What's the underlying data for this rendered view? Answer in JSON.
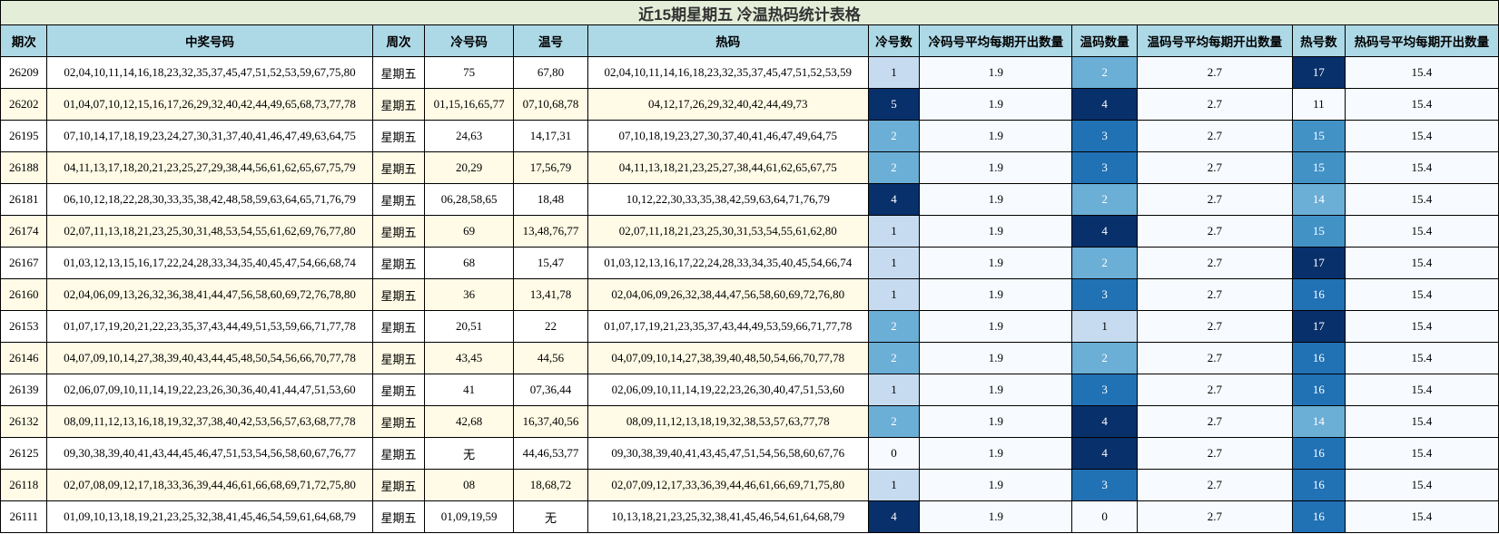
{
  "title": "近15期星期五 冷温热码统计表格",
  "headers": [
    "期次",
    "中奖号码",
    "周次",
    "冷号码",
    "温号",
    "热码",
    "冷号数",
    "冷码号平均每期开出数量",
    "温码数量",
    "温码号平均每期开出数量",
    "热号数",
    "热码号平均每期开出数量"
  ],
  "colors": {
    "c0": "#f7fbff",
    "c1": "#c6dbef",
    "c2": "#6baed6",
    "c3": "#2171b5",
    "c4": "#08306b",
    "hot11": "#f7fbff",
    "hot14": "#6baed6",
    "hot15": "#4292c6",
    "hot16": "#2171b5",
    "hot17": "#08306b",
    "light_text": "#000000",
    "dark_text": "#ffffff"
  },
  "rows": [
    {
      "period": "26209",
      "numbers": "02,04,10,11,14,16,18,23,32,35,37,45,47,51,52,53,59,67,75,80",
      "weekday": "星期五",
      "cold": "75",
      "warm": "67,80",
      "hot": "02,04,10,11,14,16,18,23,32,35,37,45,47,51,52,53,59",
      "cold_count": "1",
      "cold_avg": "1.9",
      "warm_count": "2",
      "warm_avg": "2.7",
      "hot_count": "17",
      "hot_avg": "15.4"
    },
    {
      "period": "26202",
      "numbers": "01,04,07,10,12,15,16,17,26,29,32,40,42,44,49,65,68,73,77,78",
      "weekday": "星期五",
      "cold": "01,15,16,65,77",
      "warm": "07,10,68,78",
      "hot": "04,12,17,26,29,32,40,42,44,49,73",
      "cold_count": "5",
      "cold_avg": "1.9",
      "warm_count": "4",
      "warm_avg": "2.7",
      "hot_count": "11",
      "hot_avg": "15.4"
    },
    {
      "period": "26195",
      "numbers": "07,10,14,17,18,19,23,24,27,30,31,37,40,41,46,47,49,63,64,75",
      "weekday": "星期五",
      "cold": "24,63",
      "warm": "14,17,31",
      "hot": "07,10,18,19,23,27,30,37,40,41,46,47,49,64,75",
      "cold_count": "2",
      "cold_avg": "1.9",
      "warm_count": "3",
      "warm_avg": "2.7",
      "hot_count": "15",
      "hot_avg": "15.4"
    },
    {
      "period": "26188",
      "numbers": "04,11,13,17,18,20,21,23,25,27,29,38,44,56,61,62,65,67,75,79",
      "weekday": "星期五",
      "cold": "20,29",
      "warm": "17,56,79",
      "hot": "04,11,13,18,21,23,25,27,38,44,61,62,65,67,75",
      "cold_count": "2",
      "cold_avg": "1.9",
      "warm_count": "3",
      "warm_avg": "2.7",
      "hot_count": "15",
      "hot_avg": "15.4"
    },
    {
      "period": "26181",
      "numbers": "06,10,12,18,22,28,30,33,35,38,42,48,58,59,63,64,65,71,76,79",
      "weekday": "星期五",
      "cold": "06,28,58,65",
      "warm": "18,48",
      "hot": "10,12,22,30,33,35,38,42,59,63,64,71,76,79",
      "cold_count": "4",
      "cold_avg": "1.9",
      "warm_count": "2",
      "warm_avg": "2.7",
      "hot_count": "14",
      "hot_avg": "15.4"
    },
    {
      "period": "26174",
      "numbers": "02,07,11,13,18,21,23,25,30,31,48,53,54,55,61,62,69,76,77,80",
      "weekday": "星期五",
      "cold": "69",
      "warm": "13,48,76,77",
      "hot": "02,07,11,18,21,23,25,30,31,53,54,55,61,62,80",
      "cold_count": "1",
      "cold_avg": "1.9",
      "warm_count": "4",
      "warm_avg": "2.7",
      "hot_count": "15",
      "hot_avg": "15.4"
    },
    {
      "period": "26167",
      "numbers": "01,03,12,13,15,16,17,22,24,28,33,34,35,40,45,47,54,66,68,74",
      "weekday": "星期五",
      "cold": "68",
      "warm": "15,47",
      "hot": "01,03,12,13,16,17,22,24,28,33,34,35,40,45,54,66,74",
      "cold_count": "1",
      "cold_avg": "1.9",
      "warm_count": "2",
      "warm_avg": "2.7",
      "hot_count": "17",
      "hot_avg": "15.4"
    },
    {
      "period": "26160",
      "numbers": "02,04,06,09,13,26,32,36,38,41,44,47,56,58,60,69,72,76,78,80",
      "weekday": "星期五",
      "cold": "36",
      "warm": "13,41,78",
      "hot": "02,04,06,09,26,32,38,44,47,56,58,60,69,72,76,80",
      "cold_count": "1",
      "cold_avg": "1.9",
      "warm_count": "3",
      "warm_avg": "2.7",
      "hot_count": "16",
      "hot_avg": "15.4"
    },
    {
      "period": "26153",
      "numbers": "01,07,17,19,20,21,22,23,35,37,43,44,49,51,53,59,66,71,77,78",
      "weekday": "星期五",
      "cold": "20,51",
      "warm": "22",
      "hot": "01,07,17,19,21,23,35,37,43,44,49,53,59,66,71,77,78",
      "cold_count": "2",
      "cold_avg": "1.9",
      "warm_count": "1",
      "warm_avg": "2.7",
      "hot_count": "17",
      "hot_avg": "15.4"
    },
    {
      "period": "26146",
      "numbers": "04,07,09,10,14,27,38,39,40,43,44,45,48,50,54,56,66,70,77,78",
      "weekday": "星期五",
      "cold": "43,45",
      "warm": "44,56",
      "hot": "04,07,09,10,14,27,38,39,40,48,50,54,66,70,77,78",
      "cold_count": "2",
      "cold_avg": "1.9",
      "warm_count": "2",
      "warm_avg": "2.7",
      "hot_count": "16",
      "hot_avg": "15.4"
    },
    {
      "period": "26139",
      "numbers": "02,06,07,09,10,11,14,19,22,23,26,30,36,40,41,44,47,51,53,60",
      "weekday": "星期五",
      "cold": "41",
      "warm": "07,36,44",
      "hot": "02,06,09,10,11,14,19,22,23,26,30,40,47,51,53,60",
      "cold_count": "1",
      "cold_avg": "1.9",
      "warm_count": "3",
      "warm_avg": "2.7",
      "hot_count": "16",
      "hot_avg": "15.4"
    },
    {
      "period": "26132",
      "numbers": "08,09,11,12,13,16,18,19,32,37,38,40,42,53,56,57,63,68,77,78",
      "weekday": "星期五",
      "cold": "42,68",
      "warm": "16,37,40,56",
      "hot": "08,09,11,12,13,18,19,32,38,53,57,63,77,78",
      "cold_count": "2",
      "cold_avg": "1.9",
      "warm_count": "4",
      "warm_avg": "2.7",
      "hot_count": "14",
      "hot_avg": "15.4"
    },
    {
      "period": "26125",
      "numbers": "09,30,38,39,40,41,43,44,45,46,47,51,53,54,56,58,60,67,76,77",
      "weekday": "星期五",
      "cold": "无",
      "warm": "44,46,53,77",
      "hot": "09,30,38,39,40,41,43,45,47,51,54,56,58,60,67,76",
      "cold_count": "0",
      "cold_avg": "1.9",
      "warm_count": "4",
      "warm_avg": "2.7",
      "hot_count": "16",
      "hot_avg": "15.4"
    },
    {
      "period": "26118",
      "numbers": "02,07,08,09,12,17,18,33,36,39,44,46,61,66,68,69,71,72,75,80",
      "weekday": "星期五",
      "cold": "08",
      "warm": "18,68,72",
      "hot": "02,07,09,12,17,33,36,39,44,46,61,66,69,71,75,80",
      "cold_count": "1",
      "cold_avg": "1.9",
      "warm_count": "3",
      "warm_avg": "2.7",
      "hot_count": "16",
      "hot_avg": "15.4"
    },
    {
      "period": "26111",
      "numbers": "01,09,10,13,18,19,21,23,25,32,38,41,45,46,54,59,61,64,68,79",
      "weekday": "星期五",
      "cold": "01,09,19,59",
      "warm": "无",
      "hot": "10,13,18,21,23,25,32,38,41,45,46,54,61,64,68,79",
      "cold_count": "4",
      "cold_avg": "1.9",
      "warm_count": "0",
      "warm_avg": "2.7",
      "hot_count": "16",
      "hot_avg": "15.4"
    }
  ]
}
